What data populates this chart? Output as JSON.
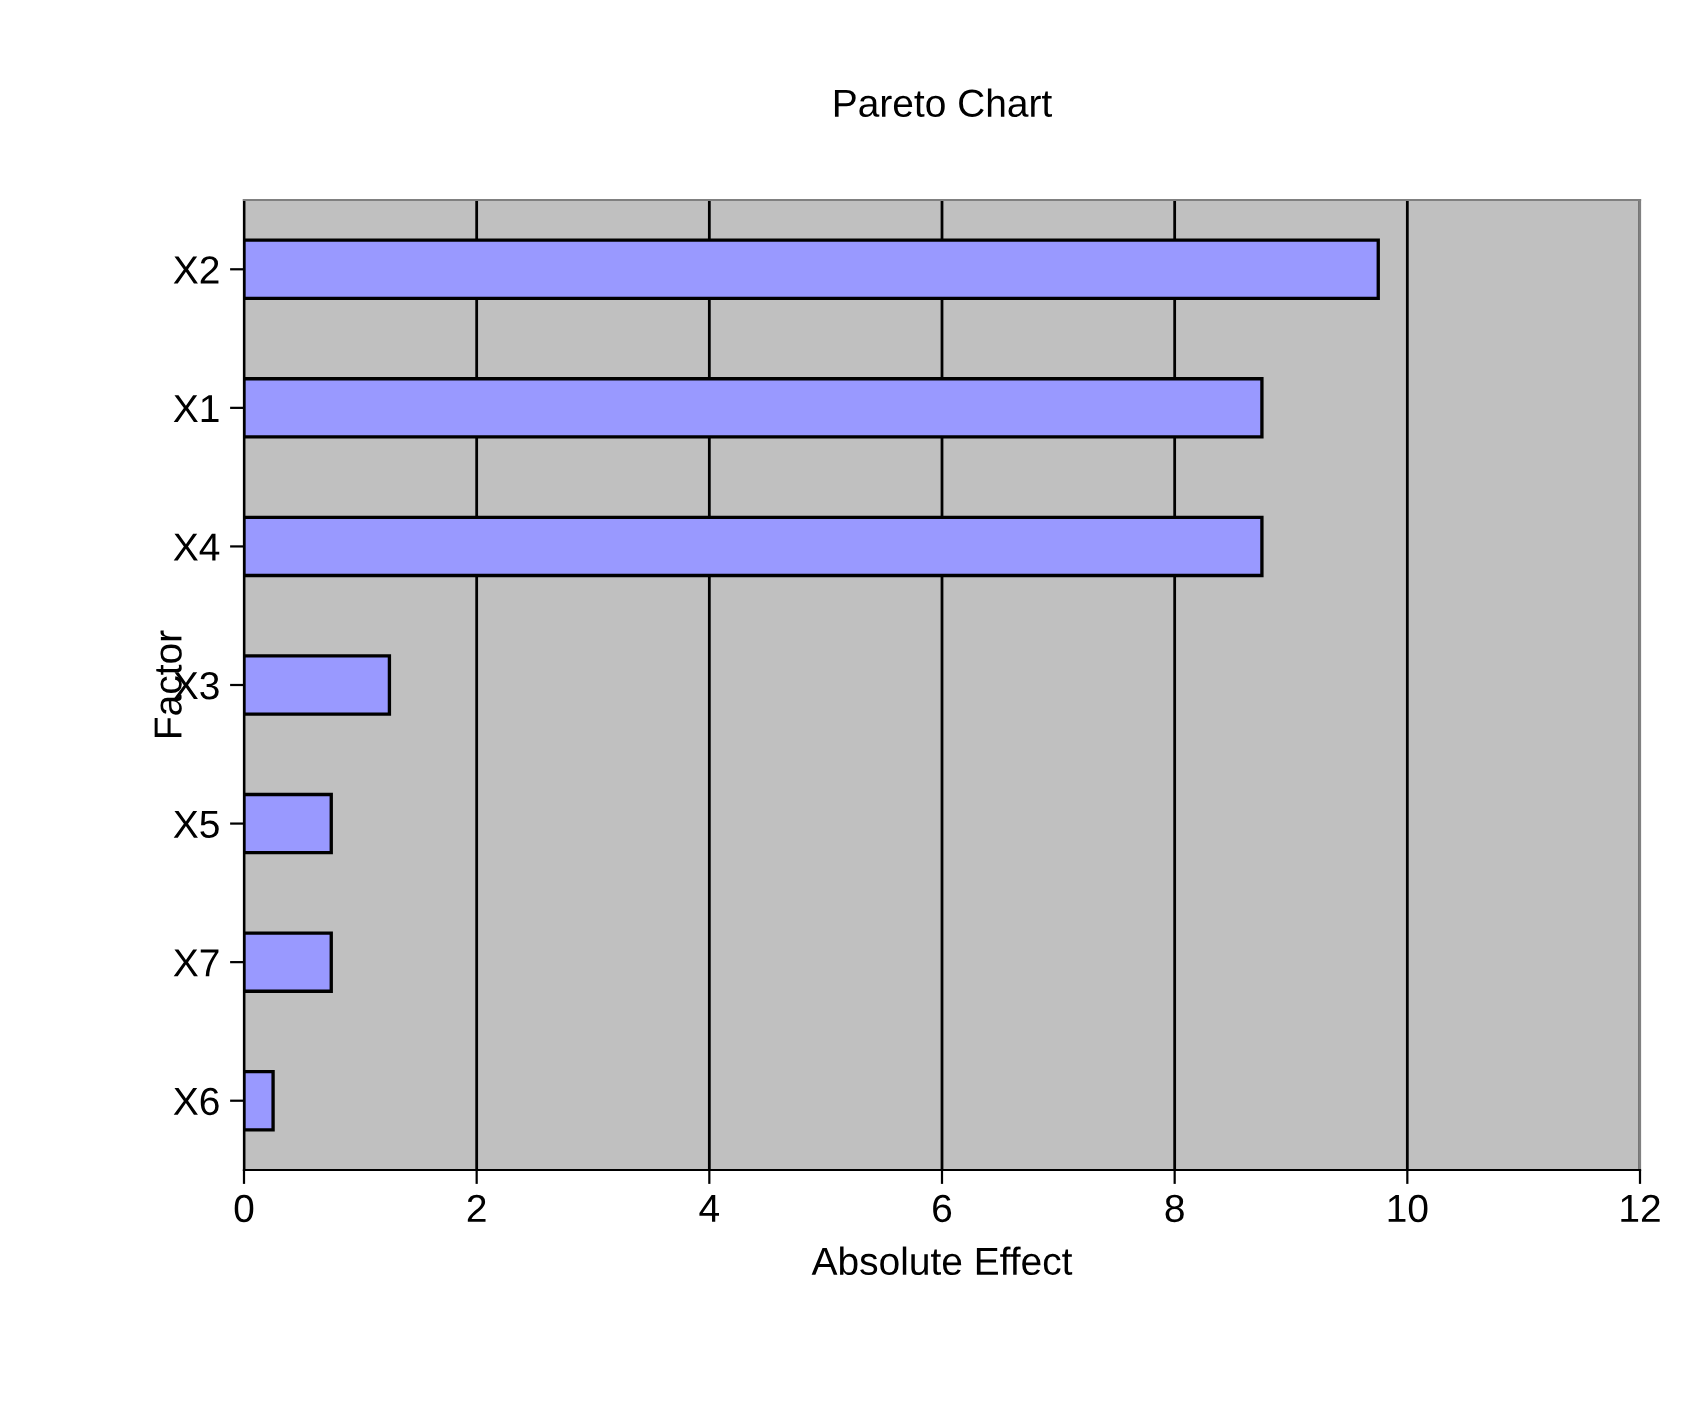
{
  "chart_data": {
    "type": "bar",
    "orientation": "horizontal",
    "title": "Pareto Chart",
    "xlabel": "Absolute Effect",
    "ylabel": "Factor",
    "categories": [
      "X2",
      "X1",
      "X4",
      "X3",
      "X5",
      "X7",
      "X6"
    ],
    "values": [
      9.75,
      8.75,
      8.75,
      1.25,
      0.75,
      0.75,
      0.25
    ],
    "color": "#9999ff",
    "xlim": [
      0,
      12
    ],
    "xticks": [
      0,
      2,
      4,
      6,
      8,
      10,
      12
    ],
    "grid": "x",
    "legend": false
  }
}
